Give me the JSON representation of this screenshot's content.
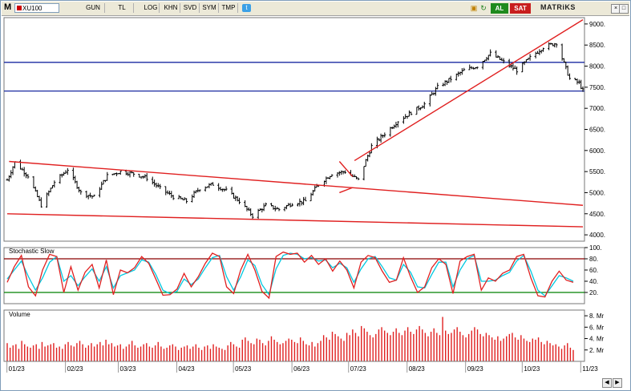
{
  "toolbar": {
    "logo": "M",
    "symbol": "XU100",
    "buttons": [
      "GUN",
      "TL",
      "LOG",
      "KHN",
      "SVD",
      "SYM",
      "TMP"
    ],
    "buy_label": "AL",
    "sell_label": "SAT",
    "brand": "MATRiKS",
    "icons": [
      "twitter-icon",
      "lock-icon",
      "refresh-icon",
      "close-icon",
      "pin-icon",
      "minimize-icon",
      "maximize-icon"
    ]
  },
  "colors": {
    "candles": "#000000",
    "trendlines": "#e02020",
    "horizontal_levels": "#1a2aa0",
    "stoch_k": "#e02020",
    "stoch_d": "#00c8e0",
    "stoch_upper": "#8b0000",
    "stoch_lower": "#008000",
    "volume": "#e02020"
  },
  "chart_data": [
    {
      "type": "ohlc",
      "symbol": "XU100",
      "ylim": [
        3850,
        9150
      ],
      "y_ticks": [
        "9000.",
        "8500.",
        "8000.",
        "7500.",
        "7000.",
        "6500.",
        "6000.",
        "5500.",
        "5000.",
        "4500.",
        "4000."
      ],
      "x_ticks": [
        "01/23",
        "02/23",
        "03/23",
        "04/23",
        "05/23",
        "06/23",
        "07/23",
        "08/23",
        "09/23",
        "10/23",
        "11/23"
      ],
      "horizontal_levels": [
        8090,
        7410
      ],
      "trendlines": [
        {
          "from": [
            "2023-01-03",
            5740
          ],
          "to": [
            "2023-11-03",
            4700
          ]
        },
        {
          "from": [
            "2023-01-02",
            4500
          ],
          "to": [
            "2023-11-03",
            4190
          ]
        },
        {
          "from": [
            "2023-06-27",
            5740
          ],
          "to": [
            "2023-07-04",
            5380
          ]
        },
        {
          "from": [
            "2023-06-27",
            5000
          ],
          "to": [
            "2023-07-04",
            5120
          ]
        },
        {
          "from": [
            "2023-07-05",
            5760
          ],
          "to": [
            "2023-11-03",
            9100
          ]
        }
      ],
      "close_path": [
        [
          "2023-01-02",
          5300
        ],
        [
          "2023-01-06",
          5720
        ],
        [
          "2023-01-13",
          5400
        ],
        [
          "2023-01-20",
          4700
        ],
        [
          "2023-01-27",
          5250
        ],
        [
          "2023-02-03",
          5550
        ],
        [
          "2023-02-10",
          5000
        ],
        [
          "2023-02-17",
          4900
        ],
        [
          "2023-02-24",
          5400
        ],
        [
          "2023-03-03",
          5500
        ],
        [
          "2023-03-10",
          5450
        ],
        [
          "2023-03-17",
          5350
        ],
        [
          "2023-03-24",
          5100
        ],
        [
          "2023-03-31",
          4900
        ],
        [
          "2023-04-07",
          4800
        ],
        [
          "2023-04-14",
          5100
        ],
        [
          "2023-04-21",
          5200
        ],
        [
          "2023-04-28",
          5050
        ],
        [
          "2023-05-05",
          4800
        ],
        [
          "2023-05-12",
          4450
        ],
        [
          "2023-05-19",
          4700
        ],
        [
          "2023-05-26",
          4600
        ],
        [
          "2023-06-02",
          4750
        ],
        [
          "2023-06-09",
          4800
        ],
        [
          "2023-06-16",
          5200
        ],
        [
          "2023-06-23",
          5450
        ],
        [
          "2023-06-30",
          5500
        ],
        [
          "2023-07-07",
          5300
        ],
        [
          "2023-07-14",
          6100
        ],
        [
          "2023-07-21",
          6400
        ],
        [
          "2023-07-28",
          6700
        ],
        [
          "2023-08-04",
          6900
        ],
        [
          "2023-08-11",
          7100
        ],
        [
          "2023-08-18",
          7500
        ],
        [
          "2023-08-25",
          7700
        ],
        [
          "2023-09-01",
          7900
        ],
        [
          "2023-09-08",
          8000
        ],
        [
          "2023-09-15",
          8300
        ],
        [
          "2023-09-22",
          8100
        ],
        [
          "2023-09-29",
          7900
        ],
        [
          "2023-10-06",
          8200
        ],
        [
          "2023-10-13",
          8450
        ],
        [
          "2023-10-20",
          8550
        ],
        [
          "2023-10-27",
          7700
        ],
        [
          "2023-11-01",
          7600
        ],
        [
          "2023-11-03",
          7420
        ]
      ]
    },
    {
      "type": "line",
      "title": "Stochastic Slow",
      "ylim": [
        0,
        100
      ],
      "y_ticks": [
        "100.",
        "80.",
        "60.",
        "40.",
        "20."
      ],
      "levels": [
        80,
        20
      ],
      "series": [
        {
          "values": [
            38,
            66,
            86,
            30,
            14,
            60,
            88,
            84,
            20,
            66,
            24,
            56,
            70,
            28,
            78,
            16,
            60,
            55,
            64,
            84,
            72,
            44,
            15,
            16,
            26,
            54,
            30,
            48,
            72,
            90,
            84,
            30,
            18,
            60,
            88,
            60,
            22,
            10,
            84,
            92,
            88,
            90,
            74,
            86,
            70,
            80,
            58,
            76,
            60,
            28,
            74,
            86,
            82,
            58,
            38,
            42,
            82,
            48,
            20,
            30,
            64,
            80,
            70,
            18,
            76,
            84,
            88,
            24,
            46,
            40,
            54,
            60,
            84,
            88,
            46,
            14,
            12,
            40,
            58,
            42,
            38
          ]
        },
        {
          "values": [
            44,
            60,
            76,
            48,
            24,
            46,
            74,
            84,
            40,
            50,
            32,
            48,
            62,
            40,
            66,
            28,
            50,
            55,
            60,
            78,
            74,
            52,
            24,
            18,
            22,
            44,
            34,
            44,
            64,
            82,
            86,
            48,
            24,
            48,
            78,
            68,
            34,
            16,
            62,
            86,
            90,
            88,
            80,
            82,
            76,
            78,
            64,
            72,
            64,
            38,
            62,
            80,
            84,
            66,
            46,
            42,
            70,
            56,
            30,
            28,
            52,
            74,
            74,
            30,
            60,
            80,
            86,
            40,
            40,
            42,
            50,
            56,
            76,
            86,
            58,
            24,
            14,
            32,
            50,
            46,
            40
          ]
        }
      ]
    },
    {
      "type": "bar",
      "title": "Volume",
      "ylim": [
        0,
        9
      ],
      "y_ticks": [
        "8. Mr",
        "6. Mr",
        "4. Mr",
        "2. Mr"
      ],
      "values": [
        3.2,
        2.4,
        2.8,
        3.0,
        2.2,
        3.6,
        3.0,
        2.6,
        2.4,
        2.8,
        3.0,
        2.2,
        3.4,
        2.6,
        2.8,
        3.0,
        3.2,
        2.4,
        2.6,
        2.2,
        3.0,
        3.4,
        2.8,
        2.6,
        3.2,
        3.6,
        3.0,
        2.4,
        2.8,
        3.2,
        2.6,
        3.0,
        3.4,
        2.8,
        3.8,
        3.0,
        3.2,
        2.6,
        2.8,
        3.0,
        2.2,
        2.6,
        3.0,
        3.6,
        2.8,
        2.4,
        2.6,
        3.0,
        3.2,
        2.6,
        2.4,
        2.8,
        3.4,
        2.6,
        2.2,
        2.4,
        2.8,
        3.0,
        2.6,
        2.0,
        2.4,
        2.6,
        2.8,
        2.2,
        2.6,
        3.0,
        2.4,
        2.0,
        2.6,
        2.8,
        2.2,
        3.0,
        2.6,
        2.4,
        2.2,
        2.0,
        2.8,
        3.4,
        3.0,
        2.6,
        2.4,
        3.8,
        4.2,
        3.6,
        3.2,
        3.0,
        4.0,
        3.8,
        3.2,
        2.8,
        3.6,
        4.4,
        3.8,
        3.4,
        3.0,
        3.2,
        3.6,
        4.0,
        3.8,
        3.4,
        3.2,
        4.2,
        3.6,
        3.0,
        2.8,
        3.4,
        2.6,
        3.2,
        3.6,
        4.6,
        4.2,
        3.8,
        5.2,
        4.8,
        4.4,
        4.0,
        3.6,
        5.0,
        4.6,
        5.6,
        5.0,
        4.4,
        6.2,
        5.8,
        5.2,
        4.6,
        4.2,
        4.8,
        5.6,
        6.0,
        5.4,
        5.0,
        4.6,
        5.2,
        5.8,
        5.0,
        4.6,
        5.4,
        6.0,
        5.2,
        4.8,
        5.6,
        6.2,
        5.6,
        5.0,
        4.4,
        5.2,
        5.8,
        5.0,
        4.6,
        7.8,
        5.4,
        4.8,
        5.0,
        5.6,
        6.0,
        5.2,
        4.6,
        4.2,
        4.8,
        5.4,
        6.0,
        5.6,
        4.8,
        4.4,
        5.0,
        4.6,
        4.2,
        3.8,
        4.4,
        3.6,
        4.0,
        4.4,
        4.8,
        5.0,
        4.2,
        3.8,
        4.6,
        4.0,
        3.6,
        3.4,
        4.0,
        3.8,
        4.2,
        3.4,
        3.0,
        3.6,
        3.2,
        2.8,
        3.0,
        2.6,
        2.2,
        2.8,
        3.2,
        2.4,
        2.0
      ]
    }
  ]
}
